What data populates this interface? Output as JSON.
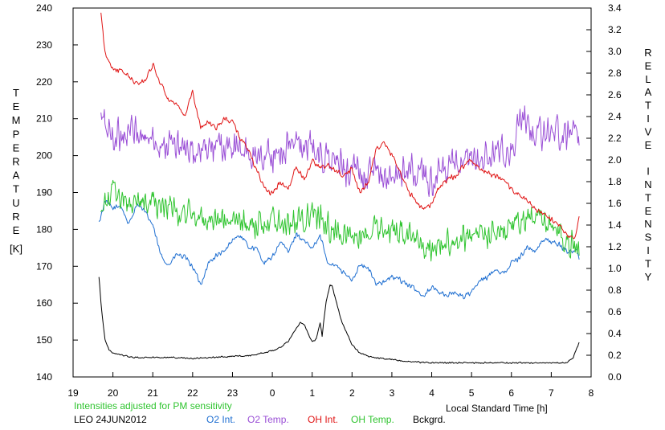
{
  "chart_data": {
    "type": "line",
    "xlabel": "Local Standard Time [h]",
    "x_ticks": [
      "19",
      "20",
      "21",
      "22",
      "23",
      "0",
      "1",
      "2",
      "3",
      "4",
      "5",
      "6",
      "7",
      "8"
    ],
    "xlim": [
      19,
      32
    ],
    "left_axis": {
      "label": "TEMPERATURE",
      "unit": "[K]",
      "ylim": [
        140,
        240
      ],
      "ticks": [
        "140",
        "150",
        "160",
        "170",
        "180",
        "190",
        "200",
        "210",
        "220",
        "230",
        "240"
      ]
    },
    "right_axis": {
      "label": "RELATIVE INTENSITY",
      "ylim": [
        0.0,
        3.4
      ],
      "ticks": [
        "0.0",
        "0.2",
        "0.4",
        "0.6",
        "0.8",
        "1.0",
        "1.2",
        "1.4",
        "1.6",
        "1.8",
        "2.0",
        "2.2",
        "2.4",
        "2.6",
        "2.8",
        "3.0",
        "3.2",
        "3.4"
      ]
    },
    "note": "Intensities adjusted for PM sensitivity",
    "station": "LEO 24JUN2012",
    "grid": false,
    "legend_position": "bottom",
    "series": [
      {
        "name": "O2 Int.",
        "axis": "right",
        "color": "#1f6fd1",
        "noise": 0.03,
        "x": [
          19.65,
          19.8,
          20.0,
          20.2,
          20.4,
          20.6,
          20.8,
          21.0,
          21.2,
          21.4,
          21.6,
          21.8,
          22.0,
          22.2,
          22.4,
          22.6,
          22.8,
          23.0,
          23.2,
          23.4,
          23.6,
          23.8,
          24.0,
          24.2,
          24.4,
          24.6,
          24.8,
          25.0,
          25.2,
          25.4,
          25.6,
          25.8,
          26.0,
          26.2,
          26.4,
          26.6,
          26.8,
          27.0,
          27.2,
          27.4,
          27.6,
          27.8,
          28.0,
          28.2,
          28.4,
          28.6,
          28.8,
          29.0,
          29.2,
          29.4,
          29.6,
          29.8,
          30.0,
          30.2,
          30.4,
          30.6,
          30.8,
          31.0,
          31.2,
          31.4,
          31.6,
          31.7
        ],
        "y": [
          1.42,
          1.62,
          1.55,
          1.58,
          1.4,
          1.6,
          1.52,
          1.4,
          1.12,
          1.03,
          1.13,
          1.1,
          1.02,
          0.85,
          1.05,
          1.12,
          1.15,
          1.27,
          1.3,
          1.2,
          1.18,
          1.05,
          1.1,
          1.25,
          1.15,
          1.32,
          1.25,
          1.18,
          1.3,
          1.05,
          1.03,
          0.95,
          0.9,
          1.03,
          1.0,
          0.87,
          0.87,
          0.92,
          0.9,
          0.85,
          0.8,
          0.75,
          0.83,
          0.78,
          0.75,
          0.78,
          0.74,
          0.78,
          0.88,
          0.92,
          1.0,
          0.95,
          1.05,
          1.1,
          1.2,
          1.15,
          1.27,
          1.25,
          1.22,
          1.15,
          1.17,
          1.1
        ]
      },
      {
        "name": "O2 Temp.",
        "axis": "left",
        "color": "#9a4fd6",
        "noise": 5.5,
        "x": [
          19.7,
          20.0,
          20.5,
          21.0,
          21.5,
          22.0,
          22.5,
          23.0,
          23.5,
          24.0,
          24.5,
          25.0,
          25.5,
          26.0,
          26.5,
          27.0,
          27.5,
          28.0,
          28.5,
          29.0,
          29.5,
          30.0,
          30.3,
          30.6,
          31.0,
          31.3,
          31.6,
          31.7
        ],
        "y": [
          210,
          205,
          207,
          204,
          203,
          200,
          202,
          202,
          200,
          200,
          203,
          202,
          198,
          196,
          195,
          194,
          196,
          193,
          197,
          198,
          200,
          201,
          211,
          205,
          208,
          205,
          211,
          204
        ]
      },
      {
        "name": "OH Int.",
        "axis": "right",
        "color": "#e01414",
        "noise": 0.03,
        "x": [
          19.7,
          19.8,
          20.0,
          20.3,
          20.6,
          20.8,
          21.0,
          21.2,
          21.4,
          21.6,
          21.8,
          22.0,
          22.2,
          22.4,
          22.6,
          22.8,
          23.0,
          23.2,
          23.4,
          23.6,
          23.8,
          24.0,
          24.2,
          24.4,
          24.6,
          24.8,
          25.0,
          25.2,
          25.4,
          25.6,
          25.8,
          26.0,
          26.2,
          26.4,
          26.6,
          26.8,
          27.0,
          27.2,
          27.4,
          27.6,
          27.8,
          28.0,
          28.2,
          28.4,
          28.6,
          28.8,
          29.0,
          29.2,
          29.4,
          29.6,
          29.8,
          30.0,
          30.2,
          30.4,
          30.6,
          30.8,
          31.0,
          31.2,
          31.4,
          31.6,
          31.7
        ],
        "y": [
          3.35,
          2.98,
          2.85,
          2.8,
          2.7,
          2.73,
          2.88,
          2.7,
          2.55,
          2.5,
          2.4,
          2.63,
          2.3,
          2.35,
          2.3,
          2.38,
          2.35,
          2.2,
          2.1,
          1.9,
          1.75,
          1.68,
          1.8,
          1.73,
          1.95,
          1.82,
          2.0,
          1.92,
          1.95,
          1.9,
          1.85,
          1.92,
          1.7,
          1.78,
          2.1,
          2.15,
          2.05,
          1.9,
          1.72,
          1.62,
          1.55,
          1.6,
          1.75,
          1.82,
          1.85,
          1.95,
          2.0,
          1.92,
          1.88,
          1.85,
          1.8,
          1.73,
          1.68,
          1.62,
          1.55,
          1.5,
          1.45,
          1.4,
          1.3,
          1.28,
          1.5
        ]
      },
      {
        "name": "OH Temp.",
        "axis": "left",
        "color": "#2fc42f",
        "noise": 4.5,
        "x": [
          19.7,
          20.0,
          20.5,
          21.0,
          21.5,
          22.0,
          22.5,
          23.0,
          23.5,
          24.0,
          24.5,
          25.0,
          25.5,
          26.0,
          26.5,
          27.0,
          27.5,
          28.0,
          28.5,
          29.0,
          29.5,
          30.0,
          30.5,
          31.0,
          31.5,
          31.7
        ],
        "y": [
          184,
          190,
          187,
          188,
          185,
          184,
          183,
          182,
          181,
          183,
          182,
          184,
          180,
          178,
          180,
          180,
          178,
          175,
          177,
          178,
          179,
          181,
          183,
          181,
          176,
          174
        ]
      },
      {
        "name": "Bckgrd.",
        "axis": "right",
        "color": "#000000",
        "noise": 0.008,
        "x": [
          19.65,
          19.72,
          19.8,
          19.9,
          20.0,
          20.5,
          21.0,
          21.5,
          22.0,
          22.5,
          23.0,
          23.5,
          24.0,
          24.2,
          24.4,
          24.6,
          24.7,
          24.8,
          24.9,
          25.0,
          25.1,
          25.2,
          25.25,
          25.35,
          25.45,
          25.5,
          25.6,
          25.75,
          25.9,
          26.0,
          26.2,
          26.5,
          27.0,
          27.5,
          28.0,
          28.5,
          29.0,
          29.5,
          30.0,
          30.5,
          31.0,
          31.4,
          31.55,
          31.7
        ],
        "y": [
          0.92,
          0.6,
          0.35,
          0.25,
          0.22,
          0.18,
          0.18,
          0.18,
          0.17,
          0.18,
          0.19,
          0.2,
          0.24,
          0.27,
          0.33,
          0.45,
          0.5,
          0.48,
          0.4,
          0.32,
          0.35,
          0.5,
          0.38,
          0.7,
          0.85,
          0.84,
          0.7,
          0.5,
          0.38,
          0.3,
          0.22,
          0.18,
          0.16,
          0.14,
          0.13,
          0.13,
          0.13,
          0.13,
          0.13,
          0.13,
          0.13,
          0.13,
          0.18,
          0.32
        ]
      }
    ]
  }
}
